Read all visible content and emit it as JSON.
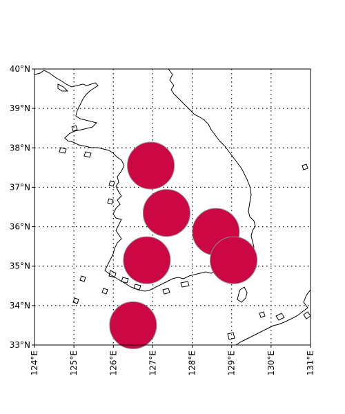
{
  "map": {
    "lon_range": [
      124,
      131
    ],
    "lat_range": [
      33,
      40
    ],
    "grid": "dotted",
    "lat_ticks": [
      {
        "value": 40,
        "label": "40°N"
      },
      {
        "value": 39,
        "label": "39°N"
      },
      {
        "value": 38,
        "label": "38°N"
      },
      {
        "value": 37,
        "label": "37°N"
      },
      {
        "value": 36,
        "label": "36°N"
      },
      {
        "value": 35,
        "label": "35°N"
      },
      {
        "value": 34,
        "label": "34°N"
      },
      {
        "value": 33,
        "label": "33°N"
      }
    ],
    "lon_ticks": [
      {
        "value": 124,
        "label": "124°E"
      },
      {
        "value": 125,
        "label": "125°E"
      },
      {
        "value": 126,
        "label": "126°E"
      },
      {
        "value": 127,
        "label": "127°E"
      },
      {
        "value": 128,
        "label": "128°E"
      },
      {
        "value": 129,
        "label": "129°E"
      },
      {
        "value": 130,
        "label": "130°E"
      },
      {
        "value": 131,
        "label": "131°E"
      }
    ],
    "marker_color": "#cc0844",
    "marker_edge": "#8a8a8a",
    "markers": [
      {
        "lon": 126.95,
        "lat": 37.55
      },
      {
        "lon": 127.35,
        "lat": 36.35
      },
      {
        "lon": 128.6,
        "lat": 35.87
      },
      {
        "lon": 126.85,
        "lat": 35.15
      },
      {
        "lon": 129.05,
        "lat": 35.15
      },
      {
        "lon": 126.5,
        "lat": 33.5
      }
    ]
  }
}
